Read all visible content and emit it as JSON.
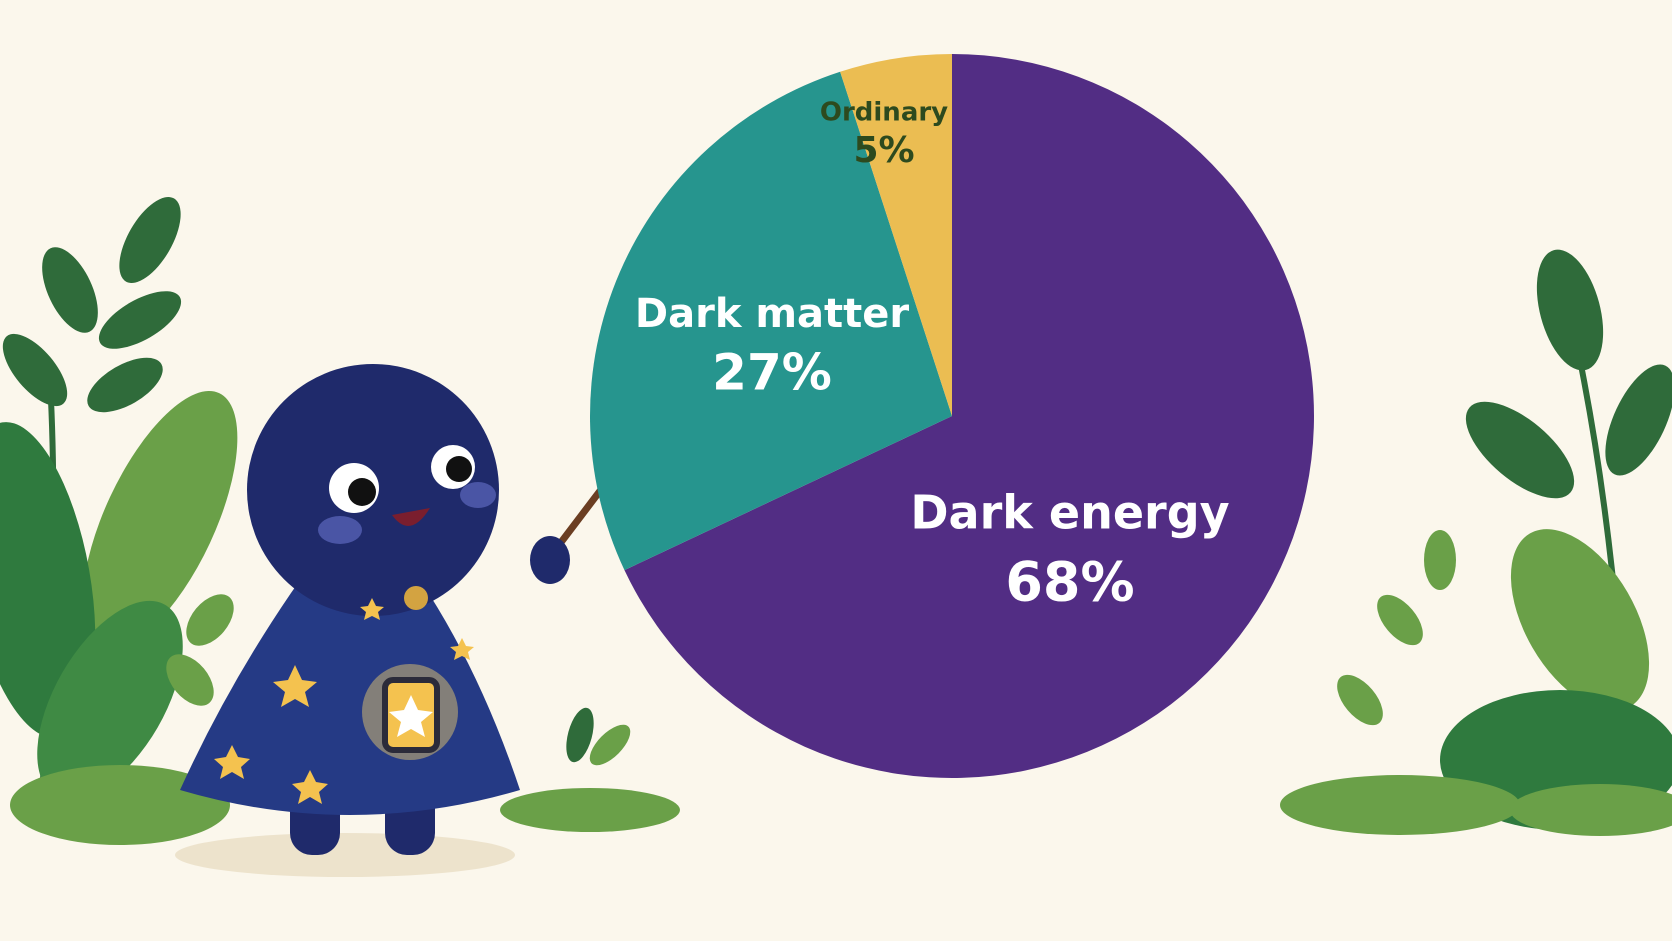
{
  "chart_data": {
    "type": "pie",
    "categories": [
      "Dark energy",
      "Dark matter",
      "Ordinary"
    ],
    "values": [
      68,
      27,
      5
    ],
    "value_labels": [
      "68%",
      "27%",
      "5%"
    ],
    "colors": [
      "#522d84",
      "#26958e",
      "#ebbd52"
    ]
  }
}
